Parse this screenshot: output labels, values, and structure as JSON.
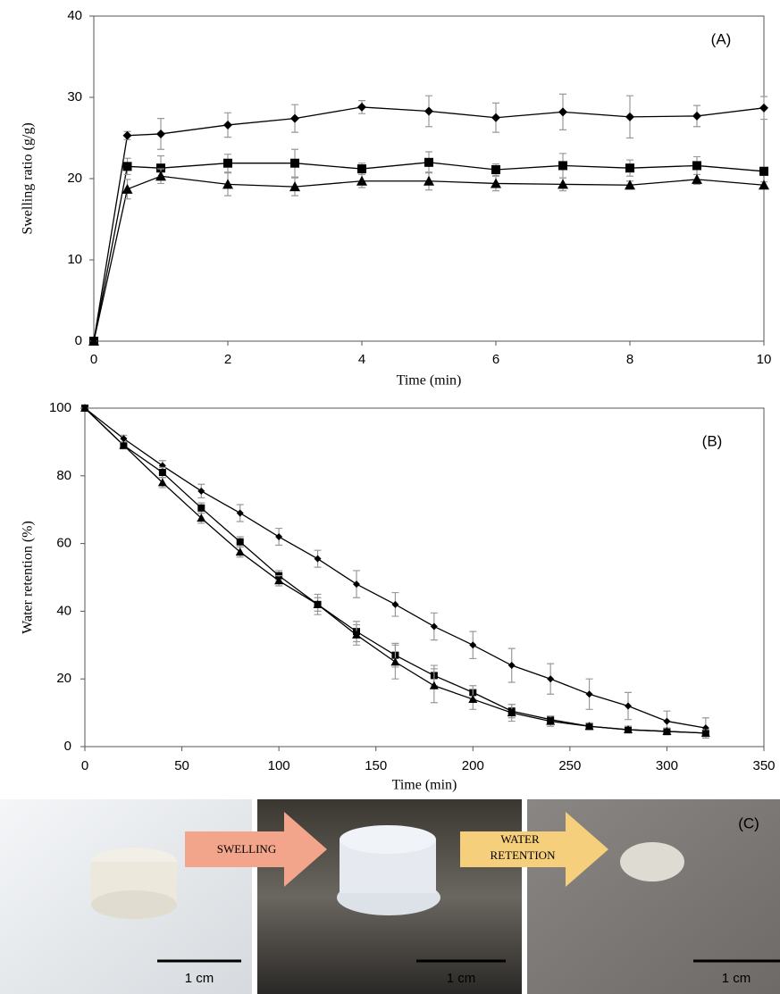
{
  "chart_data": [
    {
      "type": "line",
      "annotation": "(A)",
      "x_label": "Time (min)",
      "y_label": "Swelling ratio (g/g)",
      "x": [
        0,
        0.5,
        1,
        2,
        3,
        4,
        5,
        6,
        7,
        8,
        9,
        10
      ],
      "series": [
        {
          "marker": "diamond",
          "color": "#000000",
          "values": [
            0,
            25.3,
            25.5,
            26.6,
            27.4,
            28.8,
            28.3,
            27.5,
            28.2,
            27.6,
            27.7,
            28.7
          ],
          "errors": [
            0,
            0.5,
            1.9,
            1.5,
            1.7,
            0.8,
            1.9,
            1.8,
            2.2,
            2.6,
            1.3,
            1.4
          ]
        },
        {
          "marker": "square",
          "color": "#000000",
          "values": [
            0,
            21.5,
            21.3,
            21.9,
            21.9,
            21.2,
            22,
            21.1,
            21.6,
            21.3,
            21.6,
            20.9
          ],
          "errors": [
            0,
            1,
            1.5,
            1.1,
            1.7,
            0.7,
            1.3,
            0.7,
            1.5,
            1,
            1.1,
            0.5
          ]
        },
        {
          "marker": "triangle",
          "color": "#000000",
          "values": [
            0,
            18.7,
            20.3,
            19.3,
            19,
            19.7,
            19.7,
            19.4,
            19.3,
            19.2,
            19.9,
            19.2
          ],
          "errors": [
            0,
            1.2,
            0.9,
            1.4,
            1.1,
            0.8,
            1.1,
            0.9,
            0.8,
            0.5,
            0.6,
            0.4
          ]
        }
      ],
      "error_color": "#999999",
      "xlim": [
        0,
        10
      ],
      "xticks": [
        0,
        2,
        4,
        6,
        8,
        10
      ],
      "ylim": [
        0,
        40
      ],
      "yticks": [
        0,
        10,
        20,
        30,
        40
      ],
      "grid": false
    },
    {
      "type": "line",
      "annotation": "(B)",
      "x_label": "Time (min)",
      "y_label": "Water retention (%)",
      "x": [
        0,
        20,
        40,
        60,
        80,
        100,
        120,
        140,
        160,
        180,
        200,
        220,
        240,
        260,
        280,
        300,
        320
      ],
      "series": [
        {
          "marker": "diamond",
          "color": "#000000",
          "values": [
            100,
            91,
            83,
            75.5,
            69,
            62,
            55.5,
            48,
            42,
            35.5,
            30,
            24,
            20,
            15.5,
            12,
            7.5,
            5.5
          ],
          "errors": [
            0,
            1,
            1.5,
            2,
            2.5,
            2.5,
            2.5,
            4,
            3.5,
            4,
            4,
            5,
            4.5,
            4.5,
            4,
            3,
            3
          ]
        },
        {
          "marker": "square",
          "color": "#000000",
          "values": [
            100,
            89,
            81,
            70.5,
            60.5,
            50.5,
            42,
            34,
            27,
            21,
            16,
            10.5,
            8,
            6,
            5,
            4.5,
            4
          ],
          "errors": [
            0,
            1,
            1.5,
            1.5,
            1.5,
            1.5,
            2,
            3,
            3.5,
            3,
            2,
            2,
            1,
            1,
            1,
            1,
            1
          ]
        },
        {
          "marker": "triangle",
          "color": "#000000",
          "values": [
            100,
            89,
            78,
            67.5,
            57.5,
            49,
            42,
            33,
            25,
            18,
            14,
            10,
            7.5,
            6,
            5,
            4.5,
            4
          ],
          "errors": [
            0,
            1,
            1.5,
            1.5,
            1.5,
            1.5,
            3,
            3,
            5,
            5,
            3,
            2.5,
            1.5,
            1,
            1,
            1,
            1
          ]
        }
      ],
      "error_color": "#999999",
      "xlim": [
        0,
        350
      ],
      "xticks": [
        0,
        50,
        100,
        150,
        200,
        250,
        300,
        350
      ],
      "ylim": [
        0,
        100
      ],
      "yticks": [
        0,
        20,
        40,
        60,
        80,
        100
      ],
      "grid": false
    }
  ],
  "panel_c": {
    "annotation": "(C)",
    "step_1": "SWELLING",
    "step_2": [
      "WATER",
      "RETENTION"
    ],
    "scale_labels": [
      "1 cm",
      "1 cm",
      "1 cm"
    ]
  }
}
